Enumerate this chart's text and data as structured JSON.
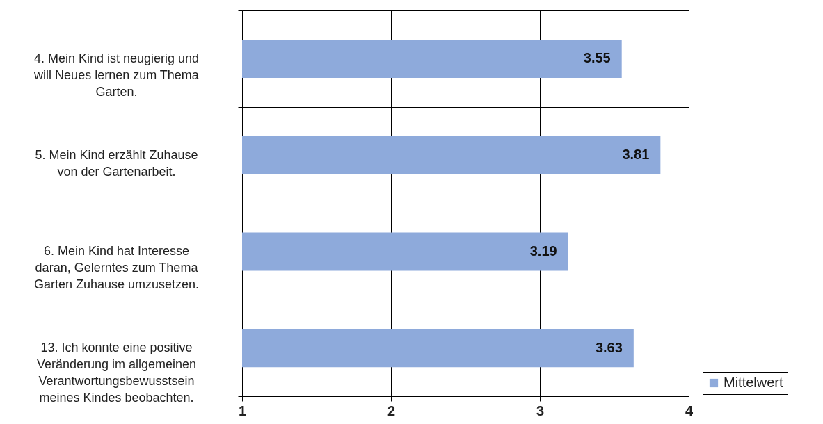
{
  "chart_data": {
    "type": "bar",
    "orientation": "horizontal",
    "categories": [
      "4. Mein Kind ist neugierig und will Neues lernen zum Thema Garten.",
      "5. Mein Kind erzählt Zuhause von der Gartenarbeit.",
      "6. Mein Kind hat Interesse daran, Gelerntes zum Thema Garten Zuhause umzusetzen.",
      "13. Ich konnte eine positive Veränderung im allgemeinen Verantwortungsbewusstsein meines Kindes beobachten."
    ],
    "series": [
      {
        "name": "Mittelwert",
        "color": "#8eaadb",
        "values": [
          3.55,
          3.81,
          3.19,
          3.63
        ]
      }
    ],
    "xlim": [
      1,
      4
    ],
    "xticks": [
      1,
      2,
      3,
      4
    ],
    "grid": true,
    "legend": "bottom right",
    "data_labels": true
  }
}
